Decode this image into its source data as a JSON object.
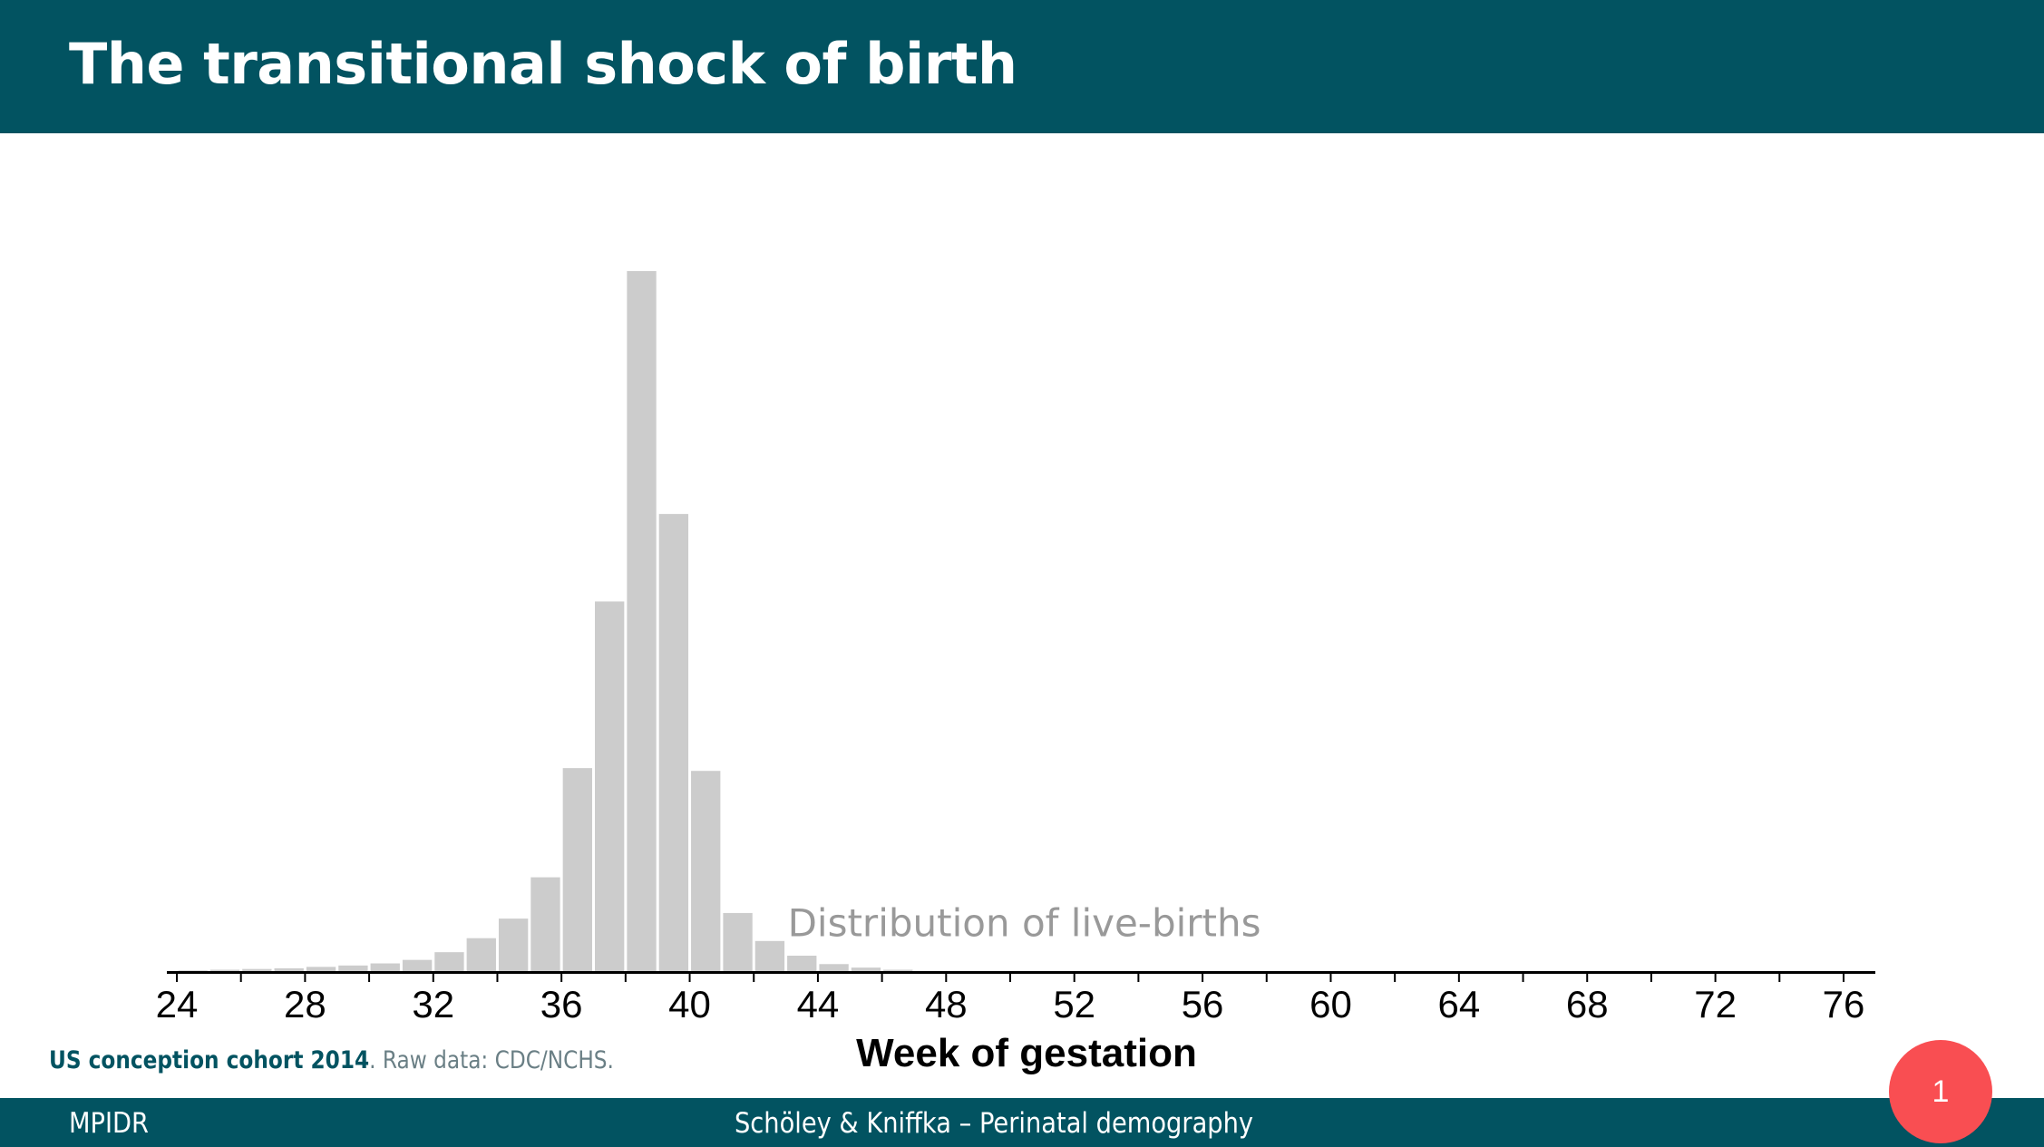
{
  "slide": {
    "title": "The transitional shock of birth",
    "caption_bold": "US conception cohort 2014",
    "caption_rest": ". Raw data: CDC/NCHS.",
    "footer_left": "MPIDR",
    "footer_center": "Schöley & Kniffka – Perinatal demography",
    "page_number": "1"
  },
  "colors": {
    "header_bg": "#025361",
    "bar_fill": "#cccccc",
    "annotation": "#999999",
    "badge": "#f94e52"
  },
  "chart_data": {
    "type": "bar",
    "xlabel": "Week of gestation",
    "xlim": [
      24,
      76
    ],
    "ylim": [
      0,
      100
    ],
    "grid": false,
    "x_ticks": [
      24,
      28,
      32,
      36,
      40,
      44,
      48,
      52,
      56,
      60,
      64,
      68,
      72,
      76
    ],
    "annotation": "Distribution of live-births",
    "annotation_x": 43,
    "annotation_y": 5,
    "bins": [
      {
        "x": 25,
        "value": 0.1
      },
      {
        "x": 26,
        "value": 0.2
      },
      {
        "x": 27,
        "value": 0.3
      },
      {
        "x": 28,
        "value": 0.4
      },
      {
        "x": 29,
        "value": 0.6
      },
      {
        "x": 30,
        "value": 0.8
      },
      {
        "x": 31,
        "value": 1.1
      },
      {
        "x": 32,
        "value": 1.6
      },
      {
        "x": 33,
        "value": 2.7
      },
      {
        "x": 34,
        "value": 4.7
      },
      {
        "x": 35,
        "value": 7.5
      },
      {
        "x": 36,
        "value": 13.4
      },
      {
        "x": 37,
        "value": 29.0
      },
      {
        "x": 38,
        "value": 52.8
      },
      {
        "x": 39,
        "value": 100
      },
      {
        "x": 40,
        "value": 65.3
      },
      {
        "x": 41,
        "value": 28.6
      },
      {
        "x": 42,
        "value": 8.3
      },
      {
        "x": 43,
        "value": 4.3
      },
      {
        "x": 44,
        "value": 2.2
      },
      {
        "x": 45,
        "value": 1.0
      },
      {
        "x": 46,
        "value": 0.5
      },
      {
        "x": 47,
        "value": 0.2
      }
    ]
  }
}
